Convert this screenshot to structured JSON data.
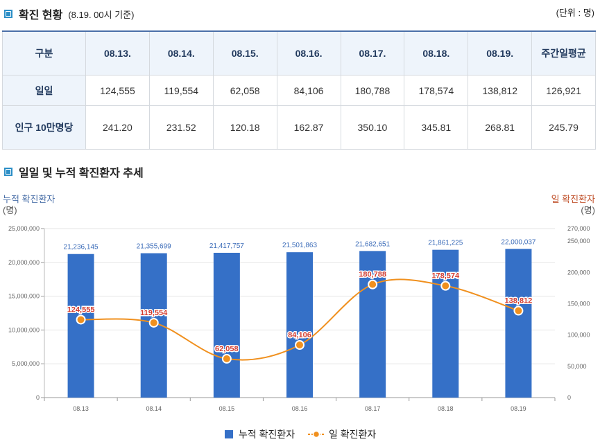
{
  "header": {
    "title": "확진 현황",
    "subtitle": "(8.19. 00시 기준)",
    "unit": "(단위 : 명)"
  },
  "table": {
    "columns": [
      "구분",
      "08.13.",
      "08.14.",
      "08.15.",
      "08.16.",
      "08.17.",
      "08.18.",
      "08.19.",
      "주간일평균"
    ],
    "rows": [
      {
        "label": "일일",
        "values": [
          "124,555",
          "119,554",
          "62,058",
          "84,106",
          "180,788",
          "178,574",
          "138,812",
          "126,921"
        ]
      },
      {
        "label": "인구 10만명당",
        "values": [
          "241.20",
          "231.52",
          "120.18",
          "162.87",
          "350.10",
          "345.81",
          "268.81",
          "245.79"
        ]
      }
    ]
  },
  "chart_section": {
    "title": "일일 및 누적 확진환자 추세"
  },
  "chart_data": {
    "type": "bar+line",
    "categories": [
      "08.13",
      "08.14",
      "08.15",
      "08.16",
      "08.17",
      "08.18",
      "08.19"
    ],
    "series": [
      {
        "name": "누적 확진환자",
        "kind": "bar",
        "axis": "left",
        "color": "#3570c7",
        "values": [
          21236145,
          21355699,
          21417757,
          21501863,
          21682651,
          21861225,
          22000037
        ],
        "labels": [
          "21,236,145",
          "21,355,699",
          "21,417,757",
          "21,501,863",
          "21,682,651",
          "21,861,225",
          "22,000,037"
        ]
      },
      {
        "name": "일 확진환자",
        "kind": "line",
        "axis": "right",
        "color": "#f0901e",
        "label_color": "#d43b2e",
        "values": [
          124555,
          119554,
          62058,
          84106,
          180788,
          178574,
          138812
        ],
        "labels": [
          "124,555",
          "119,554",
          "62,058",
          "84,106",
          "180,788",
          "178,574",
          "138,812"
        ]
      }
    ],
    "y_left": {
      "title": "누적 확진환자",
      "unit": "(명)",
      "range": [
        0,
        25000000
      ],
      "ticks": [
        0,
        5000000,
        10000000,
        15000000,
        20000000,
        25000000
      ],
      "tick_labels": [
        "0",
        "5,000,000",
        "10,000,000",
        "15,000,000",
        "20,000,000",
        "25,000,000"
      ]
    },
    "y_right": {
      "title": "일 확진환자",
      "unit": "(명)",
      "range": [
        0,
        270000
      ],
      "ticks": [
        0,
        50000,
        100000,
        150000,
        200000,
        250000,
        270000
      ],
      "tick_labels": [
        "0",
        "50,000",
        "100,000",
        "150,000",
        "200,000",
        "250,000",
        "270,000"
      ]
    },
    "legend": [
      "누적 확진환자",
      "일 확진환자"
    ],
    "legend_position": "bottom"
  }
}
